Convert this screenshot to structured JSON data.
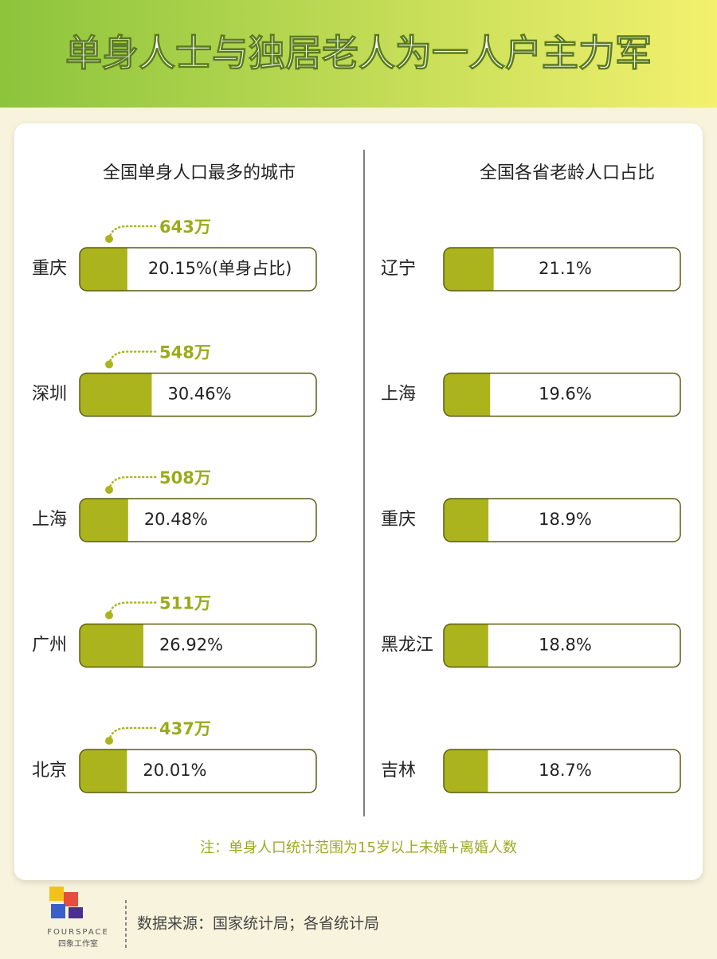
{
  "header": {
    "title": "单身人士与独居老人为一人户主力军"
  },
  "chart_data": [
    {
      "type": "bar",
      "title": "全国单身人口最多的城市",
      "categories": [
        "重庆",
        "深圳",
        "上海",
        "广州",
        "北京"
      ],
      "values": [
        20.15,
        30.46,
        20.48,
        26.92,
        20.01
      ],
      "value_labels": [
        "20.15%(单身占比)",
        "30.46%",
        "20.48%",
        "26.92%",
        "20.01%"
      ],
      "annotations": [
        "643万",
        "548万",
        "508万",
        "511万",
        "437万"
      ],
      "xlim": [
        0,
        100
      ],
      "color": "#abb41c"
    },
    {
      "type": "bar",
      "title": "全国各省老龄人口占比",
      "categories": [
        "辽宁",
        "上海",
        "重庆",
        "黑龙江",
        "吉林"
      ],
      "values": [
        21.1,
        19.6,
        18.9,
        18.8,
        18.7
      ],
      "value_labels": [
        "21.1%",
        "19.6%",
        "18.9%",
        "18.8%",
        "18.7%"
      ],
      "xlim": [
        0,
        100
      ],
      "color": "#abb41c"
    }
  ],
  "note": "注：单身人口统计范围为15岁以上未婚+离婚人数",
  "source": "数据来源：国家统计局；各省统计局",
  "logo": {
    "name": "FOURSPACE",
    "subtitle": "四象工作室"
  }
}
